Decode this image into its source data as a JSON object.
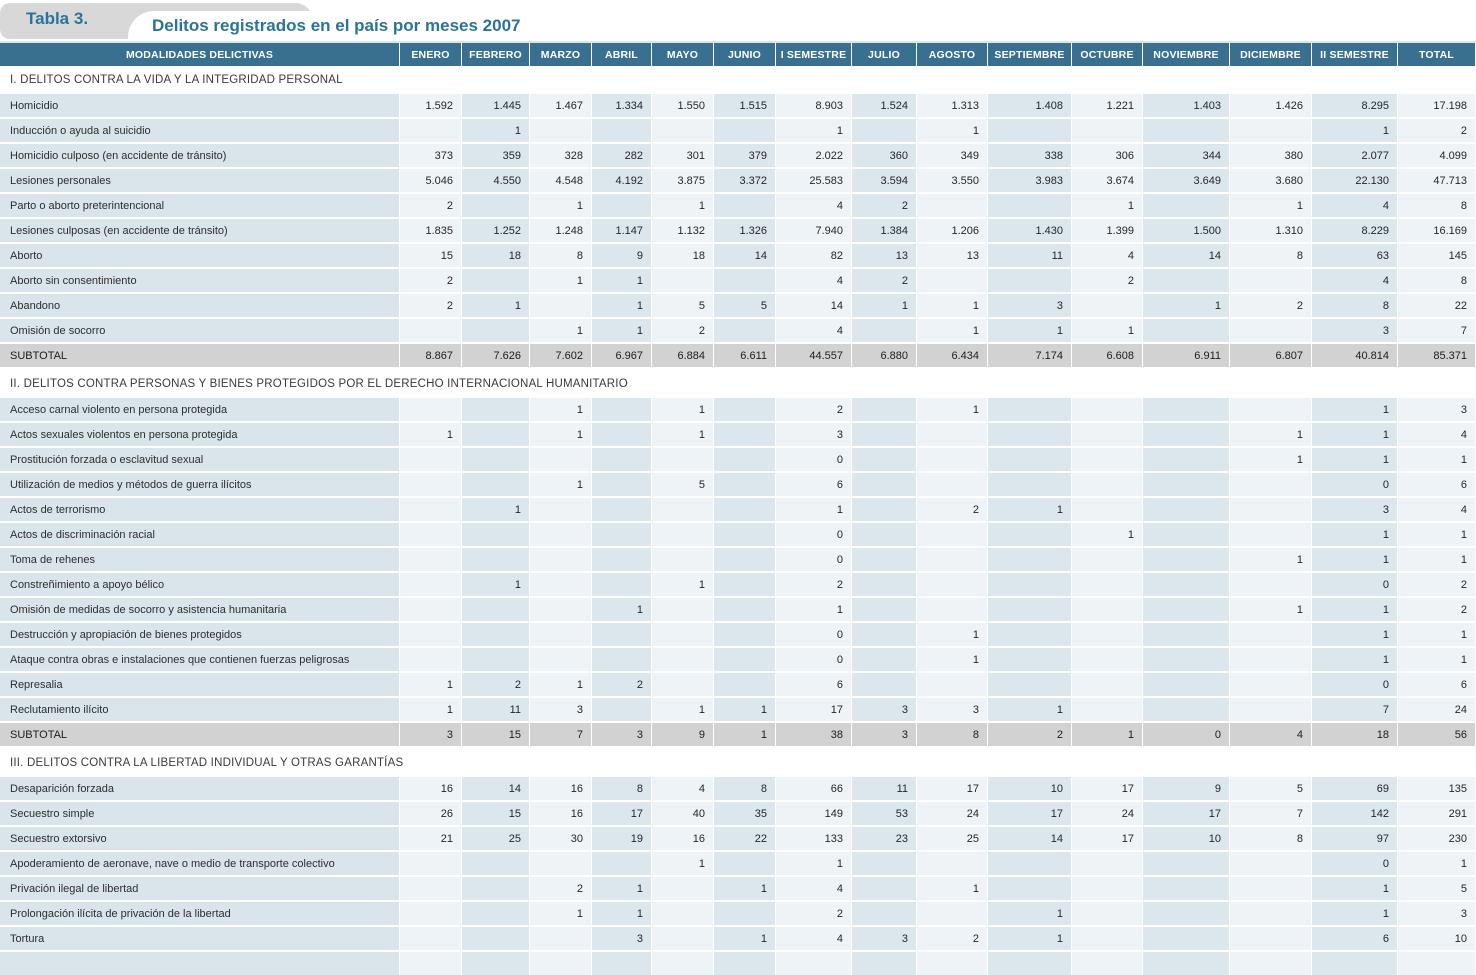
{
  "header": {
    "tab_label": "Tabla 3.",
    "title": "Delitos registrados en el país por meses 2007"
  },
  "colors": {
    "header_bg": "#39708f",
    "title_accent": "#2a7496",
    "tab_bg": "#d8d8d8",
    "label_col_bg": "#d9e4eb",
    "col_light_bg": "#eef3f7",
    "col_tint_bg": "#dce6ed",
    "subtotal_bg": "#d2d2d2"
  },
  "table": {
    "columns": [
      "MODALIDADES DELICTIVAS",
      "ENERO",
      "FEBRERO",
      "MARZO",
      "ABRIL",
      "MAYO",
      "JUNIO",
      "I SEMESTRE",
      "JULIO",
      "AGOSTO",
      "SEPTIEMBRE",
      "OCTUBRE",
      "NOVIEMBRE",
      "DICIEMBRE",
      "II SEMESTRE",
      "TOTAL"
    ],
    "sections": [
      {
        "title": "I. DELITOS CONTRA LA VIDA Y LA INTEGRIDAD PERSONAL",
        "rows": [
          {
            "label": "Homicidio",
            "values": [
              "1.592",
              "1.445",
              "1.467",
              "1.334",
              "1.550",
              "1.515",
              "8.903",
              "1.524",
              "1.313",
              "1.408",
              "1.221",
              "1.403",
              "1.426",
              "8.295",
              "17.198"
            ]
          },
          {
            "label": "Inducción o ayuda al suicidio",
            "values": [
              "",
              "1",
              "",
              "",
              "",
              "",
              "1",
              "",
              "1",
              "",
              "",
              "",
              "",
              "1",
              "2"
            ]
          },
          {
            "label": "Homicidio culposo (en accidente de tránsito)",
            "values": [
              "373",
              "359",
              "328",
              "282",
              "301",
              "379",
              "2.022",
              "360",
              "349",
              "338",
              "306",
              "344",
              "380",
              "2.077",
              "4.099"
            ]
          },
          {
            "label": "Lesiones personales",
            "values": [
              "5.046",
              "4.550",
              "4.548",
              "4.192",
              "3.875",
              "3.372",
              "25.583",
              "3.594",
              "3.550",
              "3.983",
              "3.674",
              "3.649",
              "3.680",
              "22.130",
              "47.713"
            ]
          },
          {
            "label": "Parto o aborto preterintencional",
            "values": [
              "2",
              "",
              "1",
              "",
              "1",
              "",
              "4",
              "2",
              "",
              "",
              "1",
              "",
              "1",
              "4",
              "8"
            ]
          },
          {
            "label": "Lesiones culposas (en accidente de tránsito)",
            "values": [
              "1.835",
              "1.252",
              "1.248",
              "1.147",
              "1.132",
              "1.326",
              "7.940",
              "1.384",
              "1.206",
              "1.430",
              "1.399",
              "1.500",
              "1.310",
              "8.229",
              "16.169"
            ]
          },
          {
            "label": "Aborto",
            "values": [
              "15",
              "18",
              "8",
              "9",
              "18",
              "14",
              "82",
              "13",
              "13",
              "11",
              "4",
              "14",
              "8",
              "63",
              "145"
            ]
          },
          {
            "label": "Aborto sin consentimiento",
            "values": [
              "2",
              "",
              "1",
              "1",
              "",
              "",
              "4",
              "2",
              "",
              "",
              "2",
              "",
              "",
              "4",
              "8"
            ]
          },
          {
            "label": "Abandono",
            "values": [
              "2",
              "1",
              "",
              "1",
              "5",
              "5",
              "14",
              "1",
              "1",
              "3",
              "",
              "1",
              "2",
              "8",
              "22"
            ]
          },
          {
            "label": "Omisión de socorro",
            "values": [
              "",
              "",
              "1",
              "1",
              "2",
              "",
              "4",
              "",
              "1",
              "1",
              "1",
              "",
              "",
              "3",
              "7"
            ]
          }
        ],
        "subtotal": {
          "label": "SUBTOTAL",
          "values": [
            "8.867",
            "7.626",
            "7.602",
            "6.967",
            "6.884",
            "6.611",
            "44.557",
            "6.880",
            "6.434",
            "7.174",
            "6.608",
            "6.911",
            "6.807",
            "40.814",
            "85.371"
          ]
        }
      },
      {
        "title": "II. DELITOS CONTRA PERSONAS Y BIENES PROTEGIDOS POR EL DERECHO INTERNACIONAL HUMANITARIO",
        "rows": [
          {
            "label": "Acceso carnal violento en persona protegida",
            "values": [
              "",
              "",
              "1",
              "",
              "1",
              "",
              "2",
              "",
              "1",
              "",
              "",
              "",
              "",
              "1",
              "3"
            ]
          },
          {
            "label": "Actos sexuales violentos en persona protegida",
            "values": [
              "1",
              "",
              "1",
              "",
              "1",
              "",
              "3",
              "",
              "",
              "",
              "",
              "",
              "1",
              "1",
              "4"
            ]
          },
          {
            "label": "Prostitución forzada o esclavitud sexual",
            "values": [
              "",
              "",
              "",
              "",
              "",
              "",
              "0",
              "",
              "",
              "",
              "",
              "",
              "1",
              "1",
              "1"
            ]
          },
          {
            "label": "Utilización de medios y métodos de guerra ilícitos",
            "values": [
              "",
              "",
              "1",
              "",
              "5",
              "",
              "6",
              "",
              "",
              "",
              "",
              "",
              "",
              "0",
              "6"
            ]
          },
          {
            "label": "Actos de terrorismo",
            "values": [
              "",
              "1",
              "",
              "",
              "",
              "",
              "1",
              "",
              "2",
              "1",
              "",
              "",
              "",
              "3",
              "4"
            ]
          },
          {
            "label": "Actos de discriminación racial",
            "values": [
              "",
              "",
              "",
              "",
              "",
              "",
              "0",
              "",
              "",
              "",
              "1",
              "",
              "",
              "1",
              "1"
            ]
          },
          {
            "label": "Toma de rehenes",
            "values": [
              "",
              "",
              "",
              "",
              "",
              "",
              "0",
              "",
              "",
              "",
              "",
              "",
              "1",
              "1",
              "1"
            ]
          },
          {
            "label": "Constreñimiento a apoyo bélico",
            "values": [
              "",
              "1",
              "",
              "",
              "1",
              "",
              "2",
              "",
              "",
              "",
              "",
              "",
              "",
              "0",
              "2"
            ]
          },
          {
            "label": "Omisión de medidas de socorro y asistencia humanitaria",
            "values": [
              "",
              "",
              "",
              "1",
              "",
              "",
              "1",
              "",
              "",
              "",
              "",
              "",
              "1",
              "1",
              "2"
            ]
          },
          {
            "label": "Destrucción y apropiación de bienes protegidos",
            "values": [
              "",
              "",
              "",
              "",
              "",
              "",
              "0",
              "",
              "1",
              "",
              "",
              "",
              "",
              "1",
              "1"
            ]
          },
          {
            "label": "Ataque contra obras e instalaciones que contienen fuerzas peligrosas",
            "values": [
              "",
              "",
              "",
              "",
              "",
              "",
              "0",
              "",
              "1",
              "",
              "",
              "",
              "",
              "1",
              "1"
            ]
          },
          {
            "label": "Represalia",
            "values": [
              "1",
              "2",
              "1",
              "2",
              "",
              "",
              "6",
              "",
              "",
              "",
              "",
              "",
              "",
              "0",
              "6"
            ]
          },
          {
            "label": "Reclutamiento ilícito",
            "values": [
              "1",
              "11",
              "3",
              "",
              "1",
              "1",
              "17",
              "3",
              "3",
              "1",
              "",
              "",
              "",
              "7",
              "24"
            ]
          }
        ],
        "subtotal": {
          "label": "SUBTOTAL",
          "values": [
            "3",
            "15",
            "7",
            "3",
            "9",
            "1",
            "38",
            "3",
            "8",
            "2",
            "1",
            "0",
            "4",
            "18",
            "56"
          ]
        }
      },
      {
        "title": "III. DELITOS CONTRA LA LIBERTAD INDIVIDUAL Y OTRAS GARANTÍAS",
        "rows": [
          {
            "label": "Desaparición forzada",
            "values": [
              "16",
              "14",
              "16",
              "8",
              "4",
              "8",
              "66",
              "11",
              "17",
              "10",
              "17",
              "9",
              "5",
              "69",
              "135"
            ]
          },
          {
            "label": "Secuestro simple",
            "values": [
              "26",
              "15",
              "16",
              "17",
              "40",
              "35",
              "149",
              "53",
              "24",
              "17",
              "24",
              "17",
              "7",
              "142",
              "291"
            ]
          },
          {
            "label": "Secuestro extorsivo",
            "values": [
              "21",
              "25",
              "30",
              "19",
              "16",
              "22",
              "133",
              "23",
              "25",
              "14",
              "17",
              "10",
              "8",
              "97",
              "230"
            ]
          },
          {
            "label": "Apoderamiento de aeronave, nave o medio de transporte colectivo",
            "values": [
              "",
              "",
              "",
              "",
              "1",
              "",
              "1",
              "",
              "",
              "",
              "",
              "",
              "",
              "0",
              "1"
            ]
          },
          {
            "label": "Privación ilegal de libertad",
            "values": [
              "",
              "",
              "2",
              "1",
              "",
              "1",
              "4",
              "",
              "1",
              "",
              "",
              "",
              "",
              "1",
              "5"
            ]
          },
          {
            "label": "Prolongación ilícita de privación de la libertad",
            "values": [
              "",
              "",
              "1",
              "1",
              "",
              "",
              "2",
              "",
              "",
              "1",
              "",
              "",
              "",
              "1",
              "3"
            ]
          },
          {
            "label": "Tortura",
            "values": [
              "",
              "",
              "",
              "3",
              "",
              "1",
              "4",
              "3",
              "2",
              "1",
              "",
              "",
              "",
              "6",
              "10"
            ]
          }
        ],
        "subtotal": null
      }
    ]
  }
}
